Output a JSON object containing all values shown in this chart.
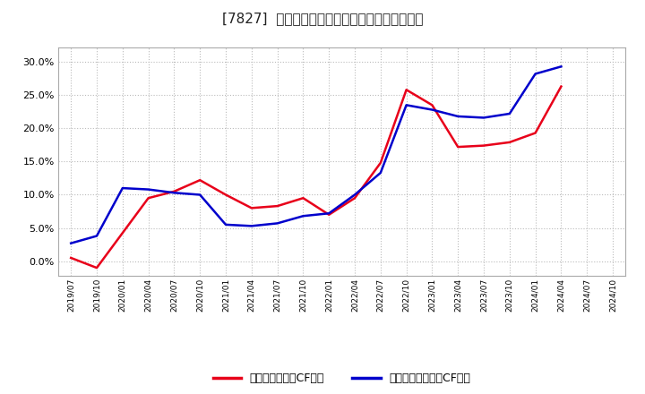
{
  "title": "[7827]  有利子負債キャッシュフロー比率の推移",
  "x_labels": [
    "2019/07",
    "2019/10",
    "2020/01",
    "2020/04",
    "2020/07",
    "2020/10",
    "2021/01",
    "2021/04",
    "2021/07",
    "2021/10",
    "2022/01",
    "2022/04",
    "2022/07",
    "2022/10",
    "2023/01",
    "2023/04",
    "2023/07",
    "2023/10",
    "2024/01",
    "2024/04",
    "2024/07",
    "2024/10"
  ],
  "red_values": [
    0.005,
    -0.01,
    null,
    0.095,
    0.105,
    0.122,
    0.1,
    0.08,
    0.083,
    0.095,
    0.07,
    0.095,
    0.148,
    0.258,
    0.235,
    0.172,
    0.174,
    0.179,
    0.193,
    0.263,
    null,
    null
  ],
  "blue_values": [
    0.027,
    0.038,
    0.11,
    0.108,
    0.103,
    0.1,
    0.055,
    0.053,
    0.057,
    0.068,
    0.072,
    0.1,
    0.133,
    0.235,
    0.228,
    0.218,
    0.216,
    0.222,
    0.282,
    0.293,
    null,
    null
  ],
  "red_color": "#e8001a",
  "blue_color": "#0000cc",
  "bg_color": "#ffffff",
  "plot_bg_color": "#ffffff",
  "grid_color": "#bbbbbb",
  "ylim": [
    -0.022,
    0.322
  ],
  "yticks": [
    0.0,
    0.05,
    0.1,
    0.15,
    0.2,
    0.25,
    0.3
  ],
  "legend_red": "有利子負債営業CF比率",
  "legend_blue": "有利子負債フリーCF比率",
  "line_width": 1.8
}
